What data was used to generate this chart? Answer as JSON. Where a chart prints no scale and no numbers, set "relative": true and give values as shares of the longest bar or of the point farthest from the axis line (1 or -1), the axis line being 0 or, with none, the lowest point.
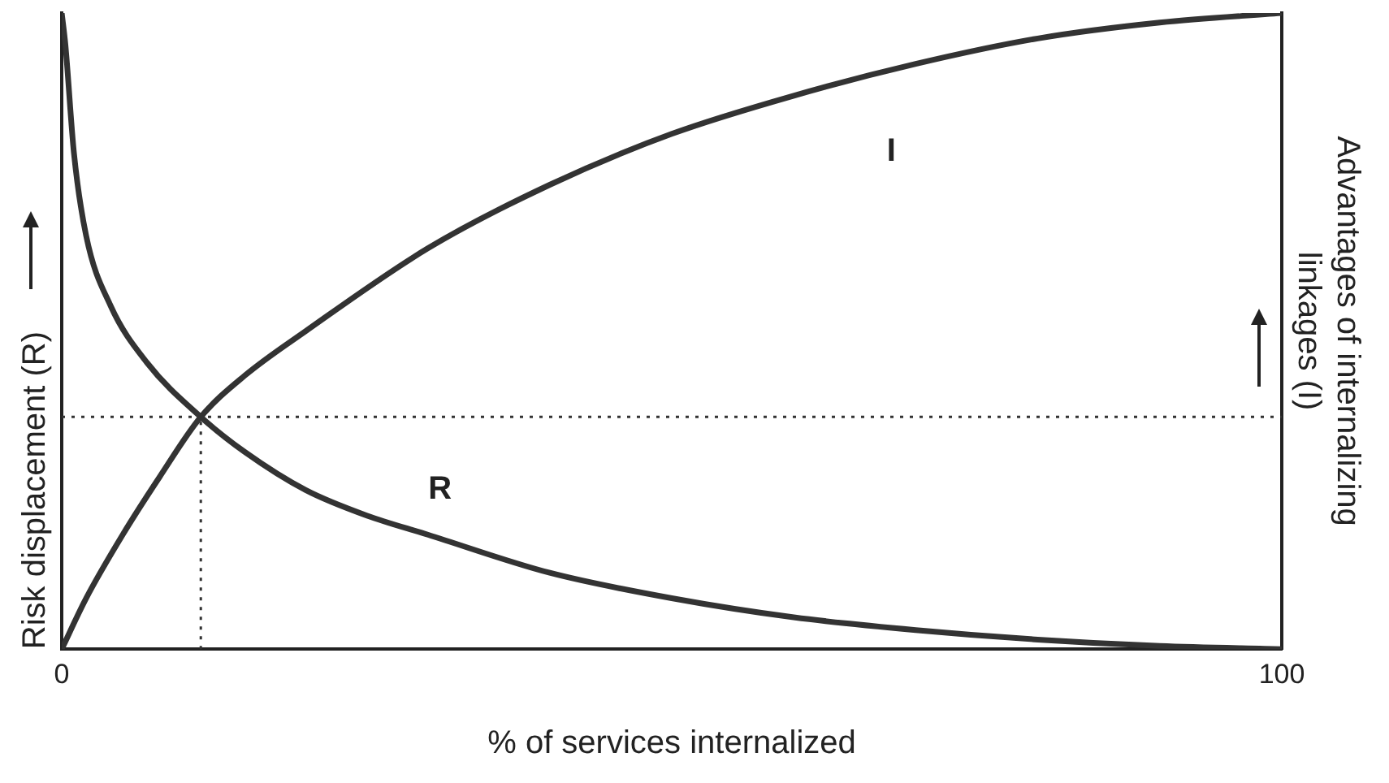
{
  "chart_data": {
    "type": "line",
    "relative": true,
    "xlabel": "% of services internalized",
    "ylabel": "Risk displacement (R)",
    "y2label": "Advantages of internalizing linkages (I)",
    "xlim": [
      0,
      100
    ],
    "xticks": [
      0,
      100
    ],
    "grid": false,
    "legend": false,
    "marker": "none",
    "line_style": "solid",
    "series": [
      {
        "name": "R",
        "color": "#333333",
        "x": [
          0,
          0.3,
          1,
          2,
          4,
          7,
          11.4,
          15,
          20,
          25,
          30,
          40,
          50,
          60,
          70,
          80,
          90,
          100
        ],
        "values": [
          1,
          0.95,
          0.78,
          0.65,
          0.54,
          0.45,
          0.365,
          0.31,
          0.25,
          0.21,
          0.18,
          0.12,
          0.08,
          0.05,
          0.03,
          0.015,
          0.005,
          0
        ]
      },
      {
        "name": "I",
        "color": "#333333",
        "axis": "y2",
        "x": [
          0,
          2,
          5,
          8,
          11.4,
          15,
          20,
          30,
          40,
          50,
          60,
          70,
          80,
          90,
          100
        ],
        "values": [
          0,
          0.08,
          0.18,
          0.27,
          0.365,
          0.43,
          0.5,
          0.63,
          0.73,
          0.81,
          0.87,
          0.92,
          0.96,
          0.985,
          1
        ]
      }
    ],
    "ref_lines": [
      {
        "axis": "y",
        "value": 0.365,
        "line_style": "dotted",
        "color": "#333333"
      },
      {
        "axis": "x",
        "value": 11.4,
        "line_style": "dotted",
        "color": "#333333"
      }
    ]
  }
}
